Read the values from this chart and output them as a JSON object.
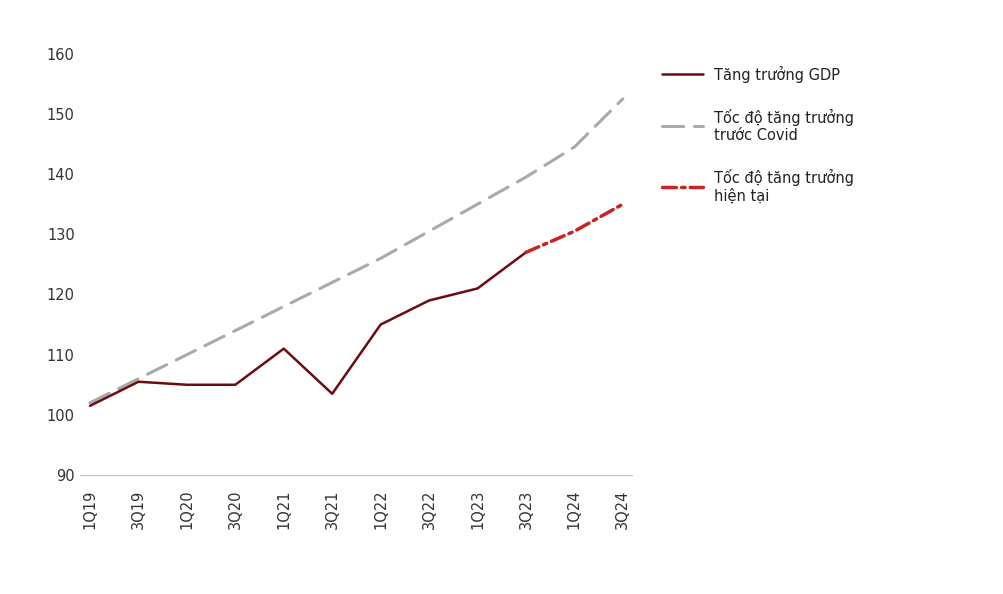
{
  "x_labels": [
    "1Q19",
    "3Q19",
    "1Q20",
    "3Q20",
    "1Q21",
    "3Q21",
    "1Q22",
    "3Q22",
    "1Q23",
    "3Q23",
    "1Q24",
    "3Q24"
  ],
  "gdp_y": [
    101.5,
    105.5,
    105.0,
    105.0,
    111.0,
    103.5,
    115.0,
    119.0,
    121.0,
    127.0,
    null,
    null
  ],
  "pre_covid_y": [
    102.0,
    106.0,
    110.0,
    114.0,
    118.0,
    122.0,
    126.0,
    130.5,
    135.0,
    139.5,
    144.5,
    152.5
  ],
  "current_trend_y": [
    null,
    null,
    null,
    null,
    null,
    null,
    null,
    null,
    null,
    127.0,
    130.5,
    135.0
  ],
  "gdp_color": "#6B0C12",
  "pre_covid_color": "#AAAAAA",
  "current_trend_color": "#CC2222",
  "legend_label_gdp": "Tăng trưởng GDP",
  "legend_label_pre_covid": "Tốc độ tăng trưởng\ntrước Covid",
  "legend_label_current": "Tốc độ tăng trưởng\nhiện tại",
  "ylim": [
    88,
    163
  ],
  "yticks": [
    90,
    100,
    110,
    120,
    130,
    140,
    150,
    160
  ],
  "background_color": "#ffffff",
  "font_size": 10.5
}
